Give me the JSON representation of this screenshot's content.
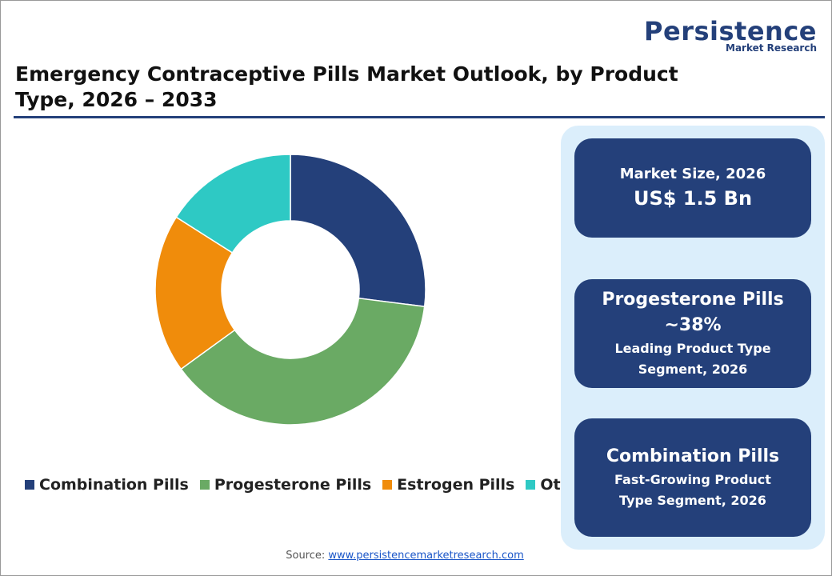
{
  "logo": {
    "name": "Persistence",
    "sub": "Market Research"
  },
  "chart_data": {
    "type": "donut",
    "title": "Emergency Contraceptive Pills Market Outlook, by Product Type, 2026 – 2033",
    "categories": [
      "Combination Pills",
      "Progesterone Pills",
      "Estrogen Pills",
      "Other"
    ],
    "values": [
      27,
      38,
      19,
      16
    ],
    "colors": [
      "#24407a",
      "#6aaa64",
      "#f08c0b",
      "#2ec9c4"
    ]
  },
  "panels": [
    {
      "lines": [
        "Market Size, 2026",
        "US$ 1.5 Bn"
      ]
    },
    {
      "lines": [
        "Progesterone Pills",
        "~38%",
        "Leading Product Type Segment, 2026"
      ]
    },
    {
      "lines": [
        "Combination Pills",
        "Fast-Growing Product Type Segment, 2026"
      ]
    }
  ],
  "source": {
    "label": "Source:",
    "link": "www.persistencemarketresearch.com"
  }
}
